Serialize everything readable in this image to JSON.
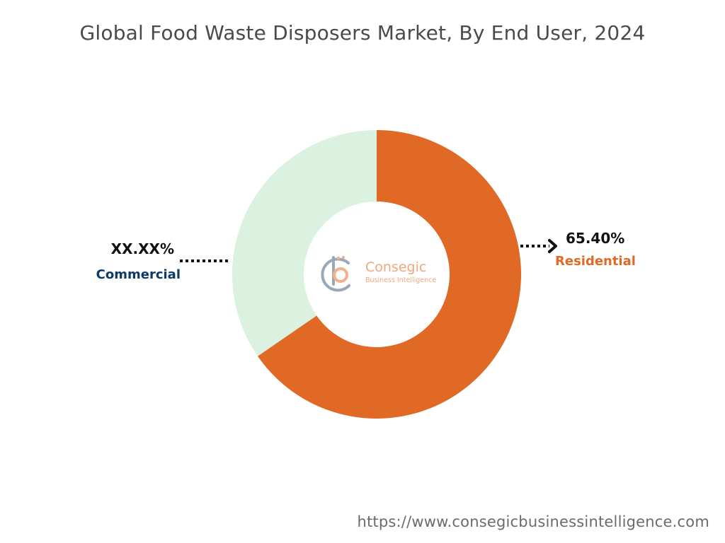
{
  "chart_data": {
    "type": "pie",
    "title": "Global Food Waste Disposers Market, By End User, 2024",
    "donut": true,
    "slices": [
      {
        "name": "Residential",
        "value": 65.4,
        "value_label": "65.40%",
        "color": "#e06926"
      },
      {
        "name": "Commercial",
        "value": 34.6,
        "value_label": "XX.XX%",
        "color": "#daf2df"
      }
    ]
  },
  "colors": {
    "commercial_label": "#0d3b66",
    "residential_label": "#e06926"
  },
  "logo": {
    "name": "Consegic",
    "tagline": "Business Intelligence"
  },
  "footer": {
    "url": "https://www.consegicbusinessintelligence.com"
  }
}
